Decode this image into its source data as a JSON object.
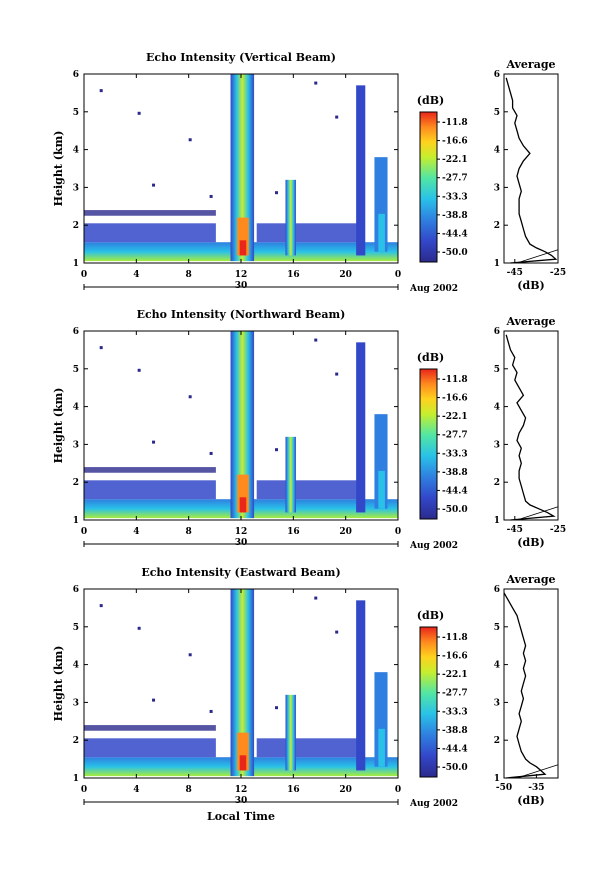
{
  "chart_data": [
    {
      "type": "heatmap",
      "title": "Echo Intensity (Vertical Beam)",
      "ylabel": "Height (km)",
      "xlim": [
        0,
        24
      ],
      "ylim": [
        1,
        6
      ],
      "xticks": [
        "0",
        "4",
        "8",
        "12",
        "16",
        "20",
        "0"
      ],
      "yticks": [
        "1",
        "2",
        "3",
        "4",
        "5",
        "6"
      ],
      "date_day": "30",
      "date_month": "Aug 2002",
      "colorbar_unit": "(dB)",
      "colorbar_ticks": [
        "-11.8",
        "-16.6",
        "-22.1",
        "-27.7",
        "-33.3",
        "-38.8",
        "-44.4",
        "-50.0"
      ],
      "average": {
        "title": "Average",
        "xlabel": "(dB)",
        "xlim": [
          -50,
          -25
        ],
        "xticks": [
          "-45",
          "-25"
        ],
        "height_km": [
          1.0,
          1.1,
          1.2,
          1.3,
          1.4,
          1.5,
          1.7,
          1.9,
          2.1,
          2.3,
          2.5,
          2.7,
          2.9,
          3.1,
          3.3,
          3.5,
          3.7,
          3.9,
          4.1,
          4.3,
          4.5,
          4.7,
          4.9,
          5.1,
          5.3,
          5.5,
          5.7,
          5.9
        ],
        "db": [
          -47,
          -26,
          -28,
          -31,
          -35,
          -38,
          -40,
          -41,
          -42,
          -43,
          -43,
          -43,
          -42,
          -43,
          -44,
          -43,
          -41,
          -38,
          -41,
          -43,
          -44,
          -45,
          -44,
          -46,
          -46,
          -47,
          -48,
          -49
        ]
      }
    },
    {
      "type": "heatmap",
      "title": "Echo Intensity (Northward Beam)",
      "ylabel": "Height (km)",
      "xlim": [
        0,
        24
      ],
      "ylim": [
        1,
        6
      ],
      "xticks": [
        "0",
        "4",
        "8",
        "12",
        "16",
        "20",
        "0"
      ],
      "yticks": [
        "1",
        "2",
        "3",
        "4",
        "5",
        "6"
      ],
      "date_day": "30",
      "date_month": "Aug 2002",
      "colorbar_unit": "(dB)",
      "colorbar_ticks": [
        "-11.8",
        "-16.6",
        "-22.1",
        "-27.7",
        "-33.3",
        "-38.8",
        "-44.4",
        "-50.0"
      ],
      "average": {
        "title": "Average",
        "xlabel": "(dB)",
        "xlim": [
          -50,
          -25
        ],
        "xticks": [
          "-45",
          "-25"
        ],
        "height_km": [
          1.0,
          1.1,
          1.2,
          1.3,
          1.4,
          1.5,
          1.7,
          1.9,
          2.1,
          2.3,
          2.5,
          2.7,
          2.9,
          3.1,
          3.3,
          3.5,
          3.7,
          3.9,
          4.1,
          4.3,
          4.5,
          4.7,
          4.9,
          5.1,
          5.3,
          5.5,
          5.7,
          5.9
        ],
        "db": [
          -47,
          -27,
          -30,
          -34,
          -38,
          -40,
          -41,
          -42,
          -43,
          -43,
          -42,
          -43,
          -42,
          -44,
          -43,
          -41,
          -40,
          -42,
          -44,
          -41,
          -43,
          -45,
          -44,
          -46,
          -45,
          -47,
          -48,
          -49
        ]
      }
    },
    {
      "type": "heatmap",
      "title": "Echo Intensity (Eastward Beam)",
      "ylabel": "Height (km)",
      "xlabel": "Local Time",
      "xlim": [
        0,
        24
      ],
      "ylim": [
        1,
        6
      ],
      "xticks": [
        "0",
        "4",
        "8",
        "12",
        "16",
        "20",
        "0"
      ],
      "yticks": [
        "1",
        "2",
        "3",
        "4",
        "5",
        "6"
      ],
      "date_day": "30",
      "date_month": "Aug 2002",
      "colorbar_unit": "(dB)",
      "colorbar_ticks": [
        "-11.8",
        "-16.6",
        "-22.1",
        "-27.7",
        "-33.3",
        "-38.8",
        "-44.4",
        "-50.0"
      ],
      "average": {
        "title": "Average",
        "xlabel": "(dB)",
        "xlim": [
          -50,
          -25
        ],
        "xticks": [
          "-50",
          "-35"
        ],
        "height_km": [
          1.0,
          1.1,
          1.2,
          1.3,
          1.4,
          1.5,
          1.7,
          1.9,
          2.1,
          2.3,
          2.5,
          2.7,
          2.9,
          3.1,
          3.3,
          3.5,
          3.7,
          3.9,
          4.1,
          4.3,
          4.5,
          4.7,
          4.9,
          5.1,
          5.3,
          5.5,
          5.7,
          5.9
        ],
        "db": [
          -49,
          -31,
          -33,
          -35,
          -38,
          -40,
          -42,
          -43,
          -44,
          -43,
          -42,
          -43,
          -42,
          -41,
          -42,
          -41,
          -40,
          -41,
          -40,
          -41,
          -40,
          -41,
          -42,
          -43,
          -44,
          -46,
          -48,
          -50
        ]
      }
    }
  ]
}
